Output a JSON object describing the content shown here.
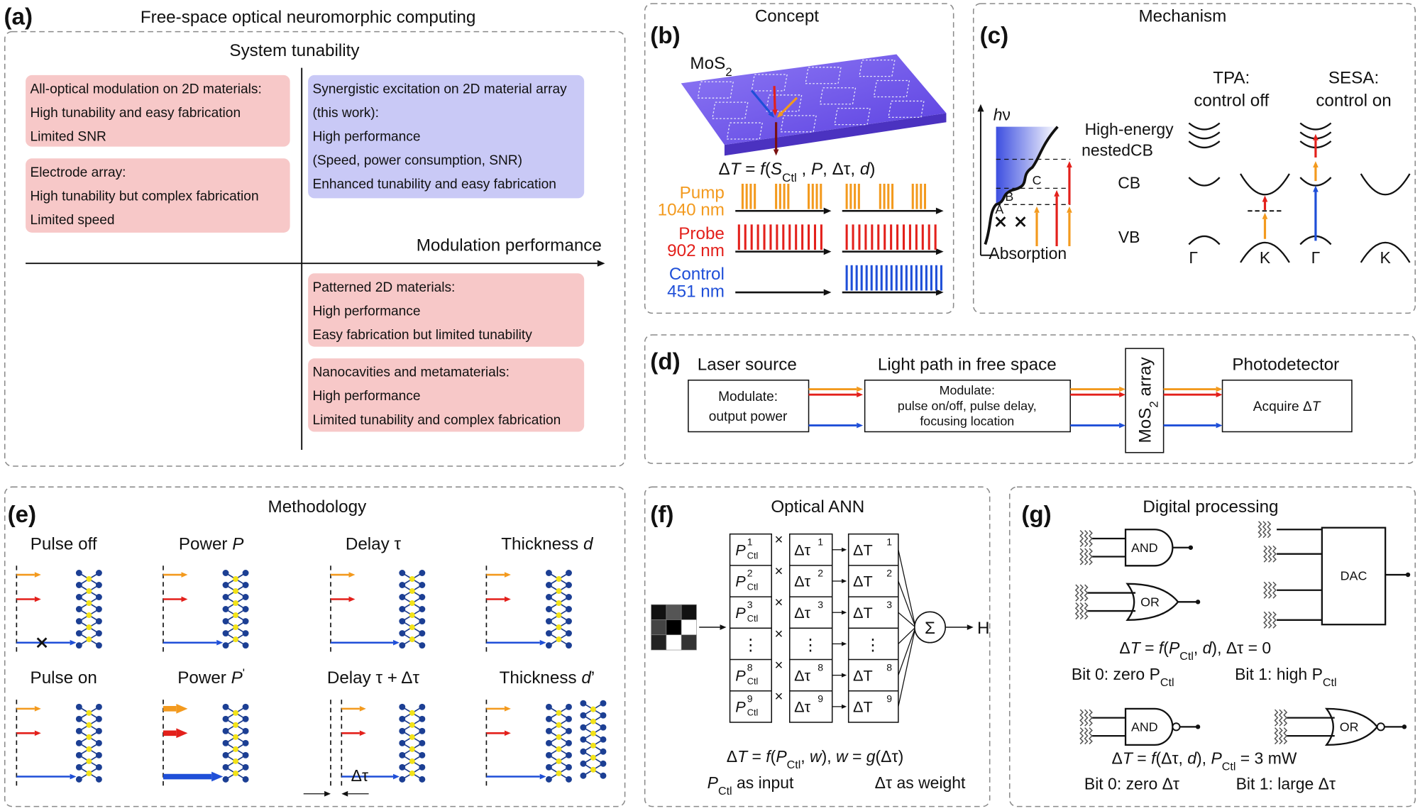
{
  "a": {
    "label": "(a)",
    "title": "Free-space optical neuromorphic computing",
    "y_axis": "System tunability",
    "x_axis": "Modulation performance",
    "boxes": [
      [
        "All-optical modulation on 2D materials:",
        "High tunability and easy fabrication",
        "Limited SNR"
      ],
      [
        "Electrode array:",
        "High tunability but complex fabrication",
        "Limited speed"
      ],
      [
        "Synergistic excitation on 2D material array",
        "(this work):",
        "High performance",
        "(Speed, power consumption, SNR)",
        "Enhanced tunability and easy fabrication"
      ],
      [
        "Patterned 2D materials:",
        "High performance",
        "Easy fabrication but limited tunability"
      ],
      [
        "Nanocavities and metamaterials:",
        "High performance",
        "Limited tunability and complex fabrication"
      ]
    ]
  },
  "b": {
    "label": "(b)",
    "title": "Concept",
    "material": [
      "MoS",
      "2"
    ],
    "equation": [
      "Δ",
      "T",
      " = ",
      "f",
      "(",
      "S",
      "Ctl",
      " , ",
      "P",
      ", Δτ, ",
      "d",
      ")"
    ],
    "beams": [
      {
        "name": "Pump",
        "wavelength": "1040 nm"
      },
      {
        "name": "Probe",
        "wavelength": "902 nm"
      },
      {
        "name": "Control",
        "wavelength": "451 nm"
      }
    ]
  },
  "c": {
    "label": "(c)",
    "title": "Mechanism",
    "photon": [
      "h",
      "ν"
    ],
    "axis": "Absorption",
    "peaks": [
      "A",
      "B",
      "C"
    ],
    "bands": {
      "high": "High-energy",
      "nested": "nestedCB",
      "cb": "CB",
      "vb": "VB"
    },
    "tpa": [
      "TPA:",
      "control off"
    ],
    "sesa": [
      "SESA:",
      "control on"
    ],
    "points": [
      "Γ",
      "K",
      "Γ",
      "K"
    ]
  },
  "d": {
    "label": "(d)",
    "stages": [
      "Laser source",
      "Light path in free space",
      "Photodetector"
    ],
    "boxes": [
      [
        "Modulate:",
        "output power"
      ],
      [
        "Modulate:",
        "pulse on/off, pulse delay,",
        "focusing location"
      ],
      [
        "Acquire Δ",
        "T"
      ]
    ],
    "array": [
      "MoS",
      "2",
      " array"
    ]
  },
  "e": {
    "label": "(e)",
    "title": "Methodology",
    "cases": [
      "Pulse off",
      [
        "Power ",
        "P"
      ],
      "Delay τ",
      [
        "Thickness ",
        "d"
      ],
      "Pulse on",
      [
        "Power ",
        "P",
        "'"
      ],
      "Delay τ + Δτ",
      [
        "Thickness ",
        "d",
        "’"
      ]
    ],
    "delay": "Δτ"
  },
  "f": {
    "label": "(f)",
    "title": "Optical ANN",
    "rows": [
      {
        "power": [
          "P",
          "1",
          "Ctl"
        ],
        "delay": [
          "Δτ",
          "1"
        ],
        "change": [
          "ΔT",
          "1"
        ]
      },
      {
        "power": [
          "P",
          "2",
          "Ctl"
        ],
        "delay": [
          "Δτ",
          "2"
        ],
        "change": [
          "ΔT",
          "2"
        ]
      },
      {
        "power": [
          "P",
          "3",
          "Ctl"
        ],
        "delay": [
          "Δτ",
          "3"
        ],
        "change": [
          "ΔT",
          "3"
        ]
      },
      {
        "power": "⋮",
        "delay": "⋮",
        "change": "⋮"
      },
      {
        "power": [
          "P",
          "8",
          "Ctl"
        ],
        "delay": [
          "Δτ",
          "8"
        ],
        "change": [
          "ΔT",
          "8"
        ]
      },
      {
        "power": [
          "P",
          "9",
          "Ctl"
        ],
        "delay": [
          "Δτ",
          "9"
        ],
        "change": [
          "ΔT",
          "9"
        ]
      }
    ],
    "times": "×",
    "sum": "Σ",
    "output": "H",
    "equation": [
      "Δ",
      "T",
      " = ",
      "f",
      "(",
      "P",
      "Ctl",
      ", ",
      "w",
      "), ",
      "w",
      " = ",
      "g",
      "(Δτ)"
    ],
    "roles": {
      "input": [
        "P",
        "Ctl",
        " as input"
      ],
      "weight": "Δτ as weight"
    }
  },
  "g": {
    "label": "(g)",
    "title": "Digital processing",
    "gates": [
      "AND",
      "OR",
      "DAC",
      "AND",
      "OR"
    ],
    "encoding1": {
      "equation": [
        "Δ",
        "T",
        " = ",
        "f",
        "(",
        "P",
        "Ctl",
        ", ",
        "d",
        "), Δτ = 0"
      ],
      "bit0": [
        "Bit 0: zero ",
        "P",
        "Ctl"
      ],
      "bit1": [
        "Bit 1: high ",
        "P",
        "Ctl"
      ]
    },
    "encoding2": {
      "equation": [
        "Δ",
        "T",
        " = ",
        "f",
        "(Δτ, ",
        "d",
        "), ",
        "P",
        "Ctl",
        " = 3 mW"
      ],
      "bit0": "Bit 0: zero Δτ",
      "bit1": "Bit 1: large Δτ"
    }
  }
}
